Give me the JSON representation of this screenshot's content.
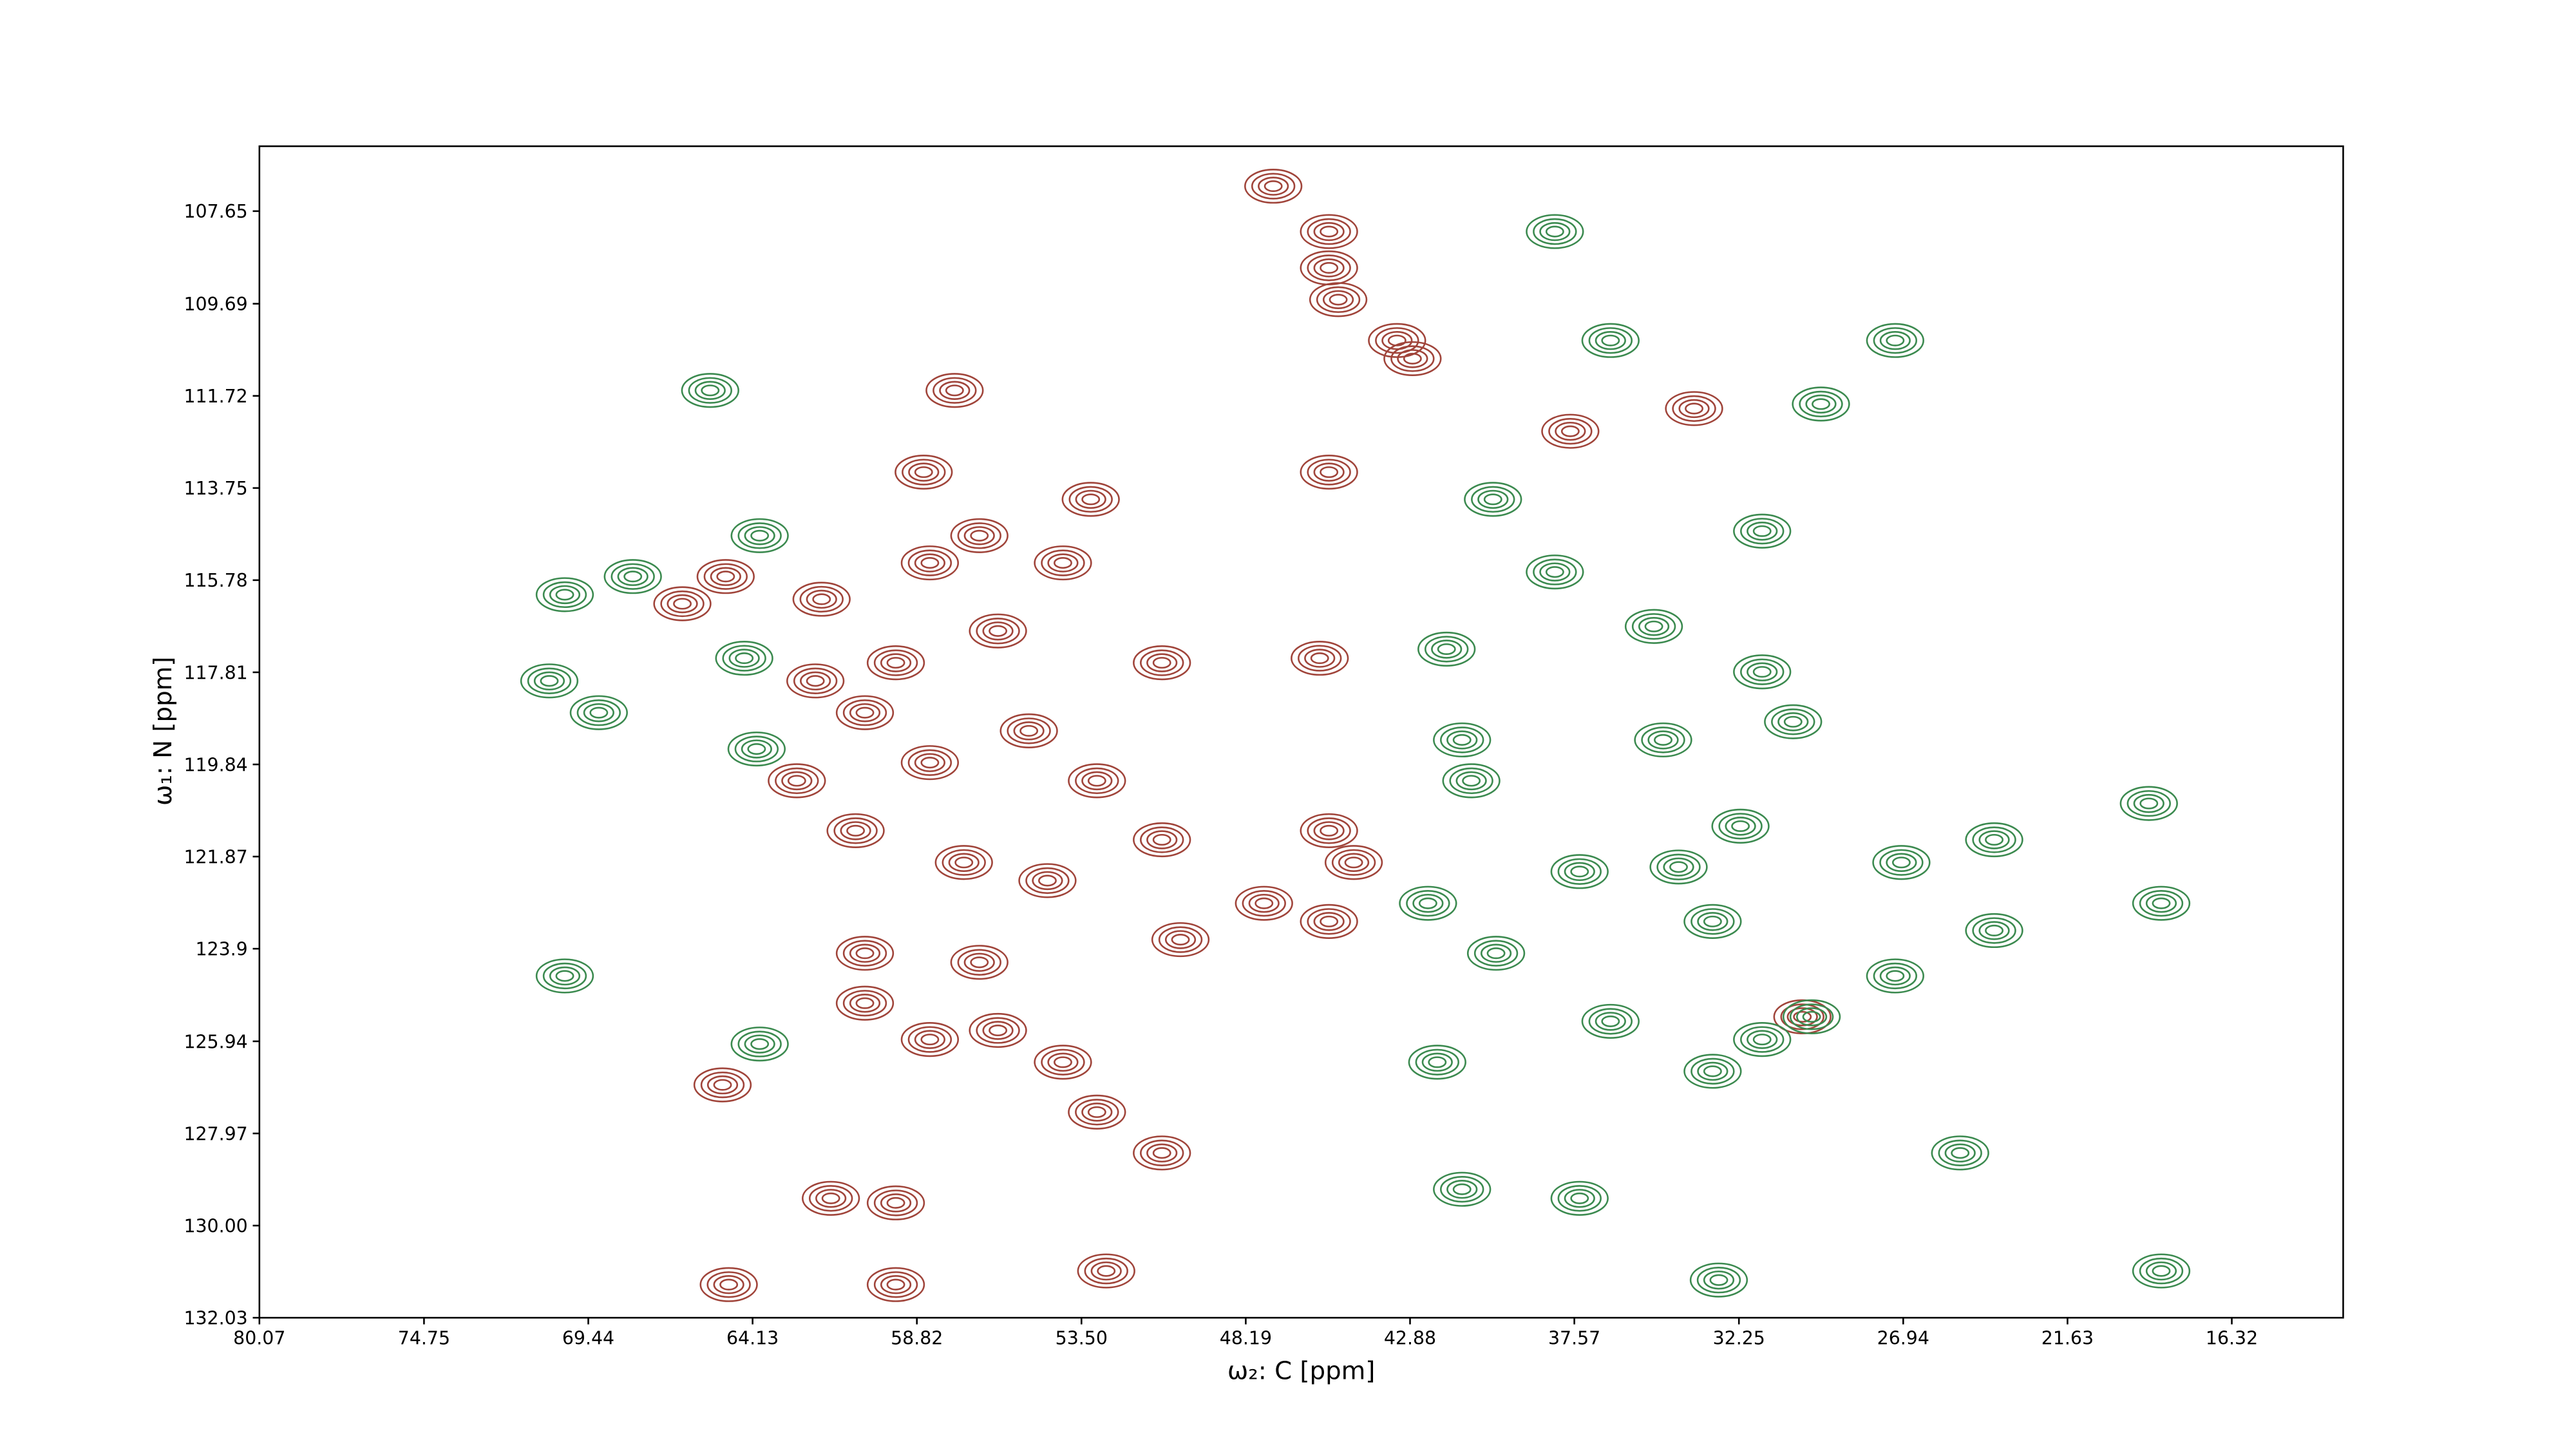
{
  "chart_data": {
    "type": "contour",
    "xlabel": "ω₂: C [ppm]",
    "ylabel": "ω₁: N [ppm]",
    "xlim": [
      80.07,
      12.72
    ],
    "ylim": [
      106.22,
      132.03
    ],
    "xticks": [
      80.07,
      74.75,
      69.44,
      64.13,
      58.82,
      {
        "value": 53.5,
        "label": "53.50"
      },
      48.19,
      42.88,
      37.57,
      32.25,
      26.94,
      21.63,
      16.32
    ],
    "yticks": [
      107.65,
      109.69,
      111.72,
      113.75,
      115.78,
      117.81,
      119.84,
      121.87,
      123.9,
      125.94,
      127.97,
      {
        "value": 130,
        "label": "130.00"
      },
      132.03
    ],
    "series": [
      {
        "color": "#a0443a",
        "x": [
          47.3,
          45.5,
          45.5,
          45.2,
          43.3,
          42.8,
          57.6,
          58.6,
          45.5,
          65.0,
          66.4,
          53.2,
          56.8,
          54.1,
          61.9,
          58.4,
          56.2,
          59.5,
          62.1,
          50.9,
          45.8,
          60.5,
          55.2,
          62.7,
          58.4,
          53.0,
          60.8,
          57.3,
          50.9,
          54.6,
          45.5,
          44.7,
          47.6,
          45.5,
          50.3,
          60.5,
          56.8,
          60.5,
          58.4,
          56.2,
          54.1,
          53.0,
          50.9,
          65.1,
          61.6,
          59.5,
          52.7,
          59.5,
          64.9,
          33.7,
          37.7,
          30.2
        ],
        "y": [
          107.1,
          108.1,
          108.9,
          109.6,
          110.5,
          110.9,
          111.6,
          113.4,
          113.4,
          115.7,
          116.3,
          114.0,
          114.8,
          115.4,
          116.2,
          115.4,
          116.9,
          117.6,
          118.0,
          117.6,
          117.5,
          118.7,
          119.1,
          120.2,
          119.8,
          120.2,
          121.3,
          122.0,
          121.5,
          122.4,
          121.3,
          122.0,
          122.9,
          123.3,
          123.7,
          124.0,
          124.2,
          125.1,
          125.9,
          125.7,
          126.4,
          127.5,
          128.4,
          126.9,
          129.4,
          129.5,
          131.0,
          131.3,
          131.3,
          112.0,
          112.5,
          125.4
        ]
      },
      {
        "color": "#3b8a4f",
        "x": [
          65.5,
          63.9,
          70.2,
          68.0,
          70.7,
          69.1,
          64.0,
          64.4,
          38.2,
          27.2,
          36.4,
          29.6,
          40.2,
          31.5,
          41.7,
          38.2,
          35.0,
          31.5,
          30.5,
          34.7,
          41.2,
          40.9,
          32.2,
          24.0,
          19.0,
          34.2,
          37.4,
          42.3,
          40.1,
          33.1,
          29.9,
          31.5,
          36.4,
          42.0,
          33.1,
          27.2,
          25.1,
          37.4,
          41.2,
          18.6,
          32.9,
          27.0,
          18.6,
          24.0,
          70.2,
          63.9
        ],
        "y": [
          111.6,
          114.8,
          116.1,
          115.7,
          118.0,
          118.7,
          119.5,
          117.5,
          108.1,
          110.5,
          110.5,
          111.9,
          114.0,
          114.7,
          117.3,
          115.6,
          116.8,
          117.8,
          118.9,
          119.3,
          119.3,
          120.2,
          121.2,
          121.5,
          120.7,
          122.1,
          122.2,
          122.9,
          124.0,
          123.3,
          125.4,
          125.9,
          125.5,
          126.4,
          126.6,
          124.5,
          128.4,
          129.4,
          129.2,
          131.0,
          131.2,
          122.0,
          122.9,
          123.5,
          124.5,
          126.0
        ]
      }
    ]
  }
}
